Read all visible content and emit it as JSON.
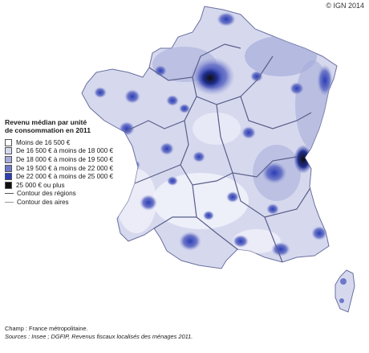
{
  "copyright": "© IGN 2014",
  "legend": {
    "title_line1": "Revenu médian par unité",
    "title_line2": "de consommation en 2011",
    "classes": [
      {
        "label": "Moins de 16 500 €",
        "color": "#ffffff"
      },
      {
        "label": "De 16 500 € à moins de 18 000 €",
        "color": "#d6d9ee"
      },
      {
        "label": "De 18 000 € à moins de 19 500 €",
        "color": "#a7addb"
      },
      {
        "label": "De 19 500 € à moins de 22 000 €",
        "color": "#6e78c9"
      },
      {
        "label": "De 22 000 € à moins de 25 000 €",
        "color": "#2b3eb4"
      },
      {
        "label": "25 000 € ou plus",
        "color": "#101010"
      }
    ],
    "lines": [
      {
        "label": "Contour des régions",
        "type": "regions"
      },
      {
        "label": "Contour des aires",
        "type": "aires"
      }
    ]
  },
  "footer": {
    "champ": "Champ : France métropolitaine.",
    "sources": "Sources : Insee ; DGFIP, Revenus fiscaux localisés des ménages 2011."
  }
}
